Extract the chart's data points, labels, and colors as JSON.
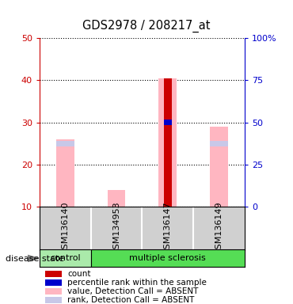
{
  "title": "GDS2978 / 208217_at",
  "samples": [
    "GSM136140",
    "GSM134953",
    "GSM136147",
    "GSM136149"
  ],
  "ylim_left": [
    10,
    50
  ],
  "ylim_right": [
    0,
    100
  ],
  "yticks_left": [
    10,
    20,
    30,
    40,
    50
  ],
  "yticks_right": [
    0,
    25,
    50,
    75,
    100
  ],
  "ytick_labels_right": [
    "0",
    "25",
    "50",
    "75",
    "100%"
  ],
  "bar_width": 0.35,
  "value_bars": [
    26.0,
    14.0,
    40.5,
    29.0
  ],
  "rank_bars": [
    25.0,
    0,
    0,
    25.0
  ],
  "count_bars": [
    0,
    0,
    40.5,
    0
  ],
  "percentile_rank": [
    0,
    0,
    30.0,
    0
  ],
  "value_color": "#FFB6C1",
  "rank_color": "#C8C8E8",
  "count_color": "#CC0000",
  "percentile_color": "#0000CC",
  "disease_state_label": "disease state",
  "legend_items": [
    {
      "label": "count",
      "color": "#CC0000"
    },
    {
      "label": "percentile rank within the sample",
      "color": "#0000CC"
    },
    {
      "label": "value, Detection Call = ABSENT",
      "color": "#FFB6C1"
    },
    {
      "label": "rank, Detection Call = ABSENT",
      "color": "#C8C8E8"
    }
  ],
  "bg_color": "#D0D0D0",
  "plot_bg": "#FFFFFF",
  "left_axis_color": "#CC0000",
  "right_axis_color": "#0000CC",
  "control_color": "#AAEAAA",
  "ms_color": "#55DD55"
}
